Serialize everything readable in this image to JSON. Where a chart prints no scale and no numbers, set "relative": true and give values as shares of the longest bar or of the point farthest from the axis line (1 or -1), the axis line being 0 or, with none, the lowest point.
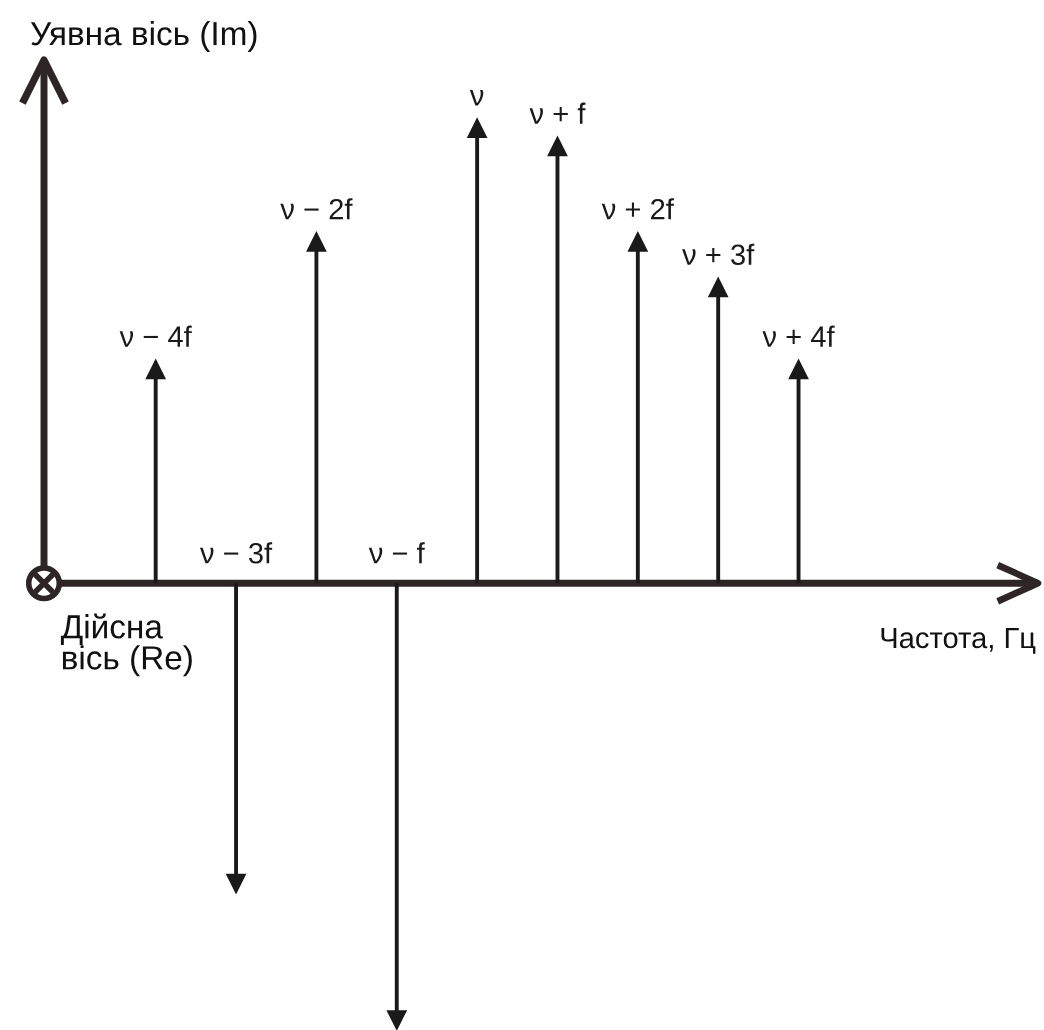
{
  "chart_data": {
    "type": "lollipop",
    "relative": true,
    "xlabel": "Частота, Гц",
    "ylabel": "Уявна вісь (Im)",
    "annotations": [
      "Дійсна\nвісь (Re)"
    ],
    "categories": [
      "ν − 4f",
      "ν − 3f",
      "ν − 2f",
      "ν − f",
      "ν",
      "ν + f",
      "ν + 2f",
      "ν + 3f",
      "ν + 4f"
    ],
    "values": [
      0.47,
      -0.66,
      0.75,
      -0.96,
      1,
      0.96,
      0.75,
      0.65,
      0.47
    ],
    "color": "#1a1a1a",
    "marker": "triangle"
  }
}
